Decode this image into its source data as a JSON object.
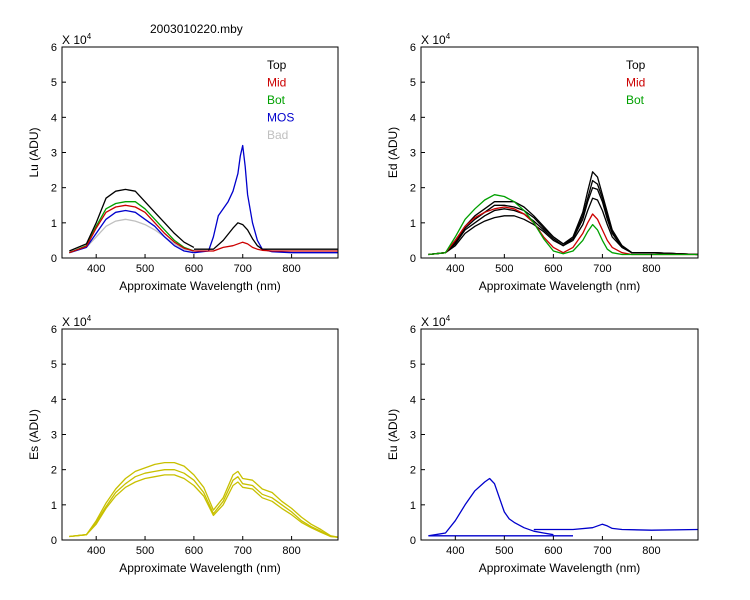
{
  "figure_title": "2003010220.mby",
  "chart_data": [
    {
      "id": "lu",
      "type": "line",
      "ylabel": "Lu (ADU)",
      "xlabel": "Approximate Wavelength (nm)",
      "exponent_label": "X 10",
      "exponent_power": "4",
      "xlim": [
        330,
        895
      ],
      "ylim": [
        0,
        6
      ],
      "xticks": [
        400,
        500,
        600,
        700,
        800
      ],
      "yticks": [
        0,
        1,
        2,
        3,
        4,
        5,
        6
      ],
      "legend": [
        {
          "label": "Top",
          "color": "#000000"
        },
        {
          "label": "Mid",
          "color": "#cc0000"
        },
        {
          "label": "Bot",
          "color": "#00a000"
        },
        {
          "label": "MOS",
          "color": "#0000cc"
        },
        {
          "label": "Bad",
          "color": "#c0c0c0"
        }
      ],
      "series": [
        {
          "name": "Bad",
          "color": "#c0c0c0",
          "x": [
            345,
            380,
            400,
            420,
            440,
            460,
            480,
            500,
            520,
            540,
            560,
            580,
            600
          ],
          "y": [
            0.15,
            0.3,
            0.6,
            0.9,
            1.05,
            1.1,
            1.05,
            0.95,
            0.8,
            0.6,
            0.4,
            0.25,
            0.2
          ]
        },
        {
          "name": "MOS",
          "color": "#0000cc",
          "x": [
            345,
            380,
            400,
            420,
            440,
            460,
            480,
            500,
            520,
            540,
            560,
            580,
            600
          ],
          "y": [
            0.15,
            0.3,
            0.7,
            1.1,
            1.3,
            1.35,
            1.3,
            1.1,
            0.9,
            0.6,
            0.35,
            0.2,
            0.15
          ]
        },
        {
          "name": "Bot",
          "color": "#00a000",
          "x": [
            345,
            380,
            400,
            420,
            440,
            460,
            480,
            500,
            520,
            540,
            560,
            580,
            600
          ],
          "y": [
            0.15,
            0.35,
            0.9,
            1.4,
            1.55,
            1.6,
            1.6,
            1.4,
            1.1,
            0.8,
            0.5,
            0.3,
            0.2
          ]
        },
        {
          "name": "Mid",
          "color": "#cc0000",
          "x": [
            345,
            380,
            400,
            420,
            440,
            460,
            480,
            500,
            520,
            540,
            560,
            580,
            600
          ],
          "y": [
            0.15,
            0.33,
            0.85,
            1.3,
            1.45,
            1.5,
            1.45,
            1.3,
            1.0,
            0.7,
            0.45,
            0.28,
            0.2
          ]
        },
        {
          "name": "Top",
          "color": "#000000",
          "x": [
            345,
            380,
            400,
            420,
            440,
            460,
            480,
            500,
            520,
            540,
            560,
            580,
            600
          ],
          "y": [
            0.2,
            0.4,
            1.0,
            1.7,
            1.9,
            1.95,
            1.9,
            1.6,
            1.3,
            1.0,
            0.7,
            0.45,
            0.3
          ]
        },
        {
          "name": "MOS",
          "color": "#0000cc",
          "x": [
            600,
            630,
            640,
            650,
            660,
            670,
            680,
            690,
            695,
            700,
            705,
            710,
            720,
            730,
            740,
            760,
            800,
            895
          ],
          "y": [
            0.15,
            0.2,
            0.6,
            1.2,
            1.4,
            1.6,
            1.9,
            2.4,
            2.9,
            3.2,
            2.6,
            1.8,
            1.0,
            0.5,
            0.25,
            0.18,
            0.15,
            0.15
          ]
        },
        {
          "name": "Top",
          "color": "#000000",
          "x": [
            600,
            640,
            660,
            680,
            690,
            700,
            710,
            720,
            730,
            740,
            760,
            800,
            895
          ],
          "y": [
            0.25,
            0.25,
            0.5,
            0.85,
            1.0,
            0.95,
            0.8,
            0.55,
            0.35,
            0.25,
            0.25,
            0.25,
            0.25
          ]
        },
        {
          "name": "Mid",
          "color": "#cc0000",
          "x": [
            600,
            640,
            660,
            680,
            700,
            710,
            720,
            730,
            740,
            760,
            800,
            895
          ],
          "y": [
            0.2,
            0.2,
            0.3,
            0.35,
            0.45,
            0.4,
            0.3,
            0.25,
            0.22,
            0.2,
            0.2,
            0.2
          ]
        }
      ]
    },
    {
      "id": "ed",
      "type": "line",
      "ylabel": "Ed  (ADU)",
      "xlabel": "Approximate Wavelength (nm)",
      "exponent_label": "X 10",
      "exponent_power": "4",
      "xlim": [
        330,
        895
      ],
      "ylim": [
        0,
        6
      ],
      "xticks": [
        400,
        500,
        600,
        700,
        800
      ],
      "yticks": [
        0,
        1,
        2,
        3,
        4,
        5,
        6
      ],
      "legend": [
        {
          "label": "Top",
          "color": "#000000"
        },
        {
          "label": "Mid",
          "color": "#cc0000"
        },
        {
          "label": "Bot",
          "color": "#00a000"
        }
      ],
      "series": [
        {
          "name": "Top",
          "color": "#000000",
          "x": [
            345,
            380,
            400,
            420,
            440,
            460,
            480,
            500,
            520,
            540,
            560,
            580,
            600,
            620,
            640,
            660,
            670,
            680,
            690,
            700,
            710,
            720,
            740,
            760,
            800,
            895
          ],
          "y": [
            0.1,
            0.15,
            0.5,
            0.9,
            1.2,
            1.4,
            1.6,
            1.6,
            1.6,
            1.45,
            1.2,
            0.9,
            0.6,
            0.4,
            0.6,
            1.3,
            1.9,
            2.45,
            2.3,
            1.8,
            1.3,
            0.8,
            0.35,
            0.15,
            0.15,
            0.1
          ]
        },
        {
          "name": "Top",
          "color": "#000000",
          "x": [
            345,
            380,
            400,
            420,
            440,
            460,
            480,
            500,
            520,
            540,
            560,
            580,
            600,
            620,
            640,
            660,
            670,
            680,
            690,
            700,
            710,
            720,
            740,
            760,
            800,
            895
          ],
          "y": [
            0.1,
            0.15,
            0.4,
            0.8,
            1.0,
            1.2,
            1.35,
            1.4,
            1.35,
            1.25,
            1.05,
            0.8,
            0.55,
            0.35,
            0.55,
            1.1,
            1.6,
            2.0,
            1.95,
            1.6,
            1.1,
            0.7,
            0.3,
            0.15,
            0.15,
            0.1
          ]
        },
        {
          "name": "Top",
          "color": "#000000",
          "x": [
            345,
            380,
            400,
            420,
            440,
            460,
            480,
            500,
            520,
            540,
            560,
            580,
            600,
            620,
            640,
            660,
            670,
            680,
            690,
            700,
            710,
            720,
            740,
            760,
            800,
            895
          ],
          "y": [
            0.1,
            0.15,
            0.35,
            0.7,
            0.9,
            1.05,
            1.15,
            1.2,
            1.2,
            1.1,
            0.95,
            0.75,
            0.5,
            0.35,
            0.5,
            0.95,
            1.35,
            1.7,
            1.65,
            1.35,
            0.95,
            0.6,
            0.3,
            0.15,
            0.15,
            0.1
          ]
        },
        {
          "name": "Top",
          "color": "#000000",
          "x": [
            345,
            380,
            400,
            420,
            440,
            460,
            480,
            500,
            520,
            540,
            560,
            580,
            600,
            620,
            640,
            660,
            670,
            680,
            690,
            700,
            710,
            720,
            740,
            760,
            800,
            895
          ],
          "y": [
            0.1,
            0.15,
            0.45,
            0.85,
            1.1,
            1.3,
            1.5,
            1.5,
            1.45,
            1.35,
            1.15,
            0.85,
            0.6,
            0.4,
            0.55,
            1.2,
            1.7,
            2.2,
            2.1,
            1.7,
            1.2,
            0.75,
            0.35,
            0.15,
            0.15,
            0.1
          ]
        },
        {
          "name": "Mid",
          "color": "#cc0000",
          "x": [
            345,
            380,
            400,
            420,
            440,
            460,
            480,
            500,
            520,
            540,
            560,
            580,
            600,
            620,
            640,
            660,
            670,
            680,
            690,
            700,
            710,
            720,
            740,
            760,
            800,
            895
          ],
          "y": [
            0.1,
            0.15,
            0.5,
            0.9,
            1.15,
            1.3,
            1.4,
            1.45,
            1.4,
            1.25,
            1.0,
            0.6,
            0.3,
            0.15,
            0.3,
            0.7,
            1.0,
            1.25,
            1.1,
            0.8,
            0.5,
            0.3,
            0.15,
            0.1,
            0.1,
            0.1
          ]
        },
        {
          "name": "Bot",
          "color": "#00a000",
          "x": [
            345,
            380,
            400,
            420,
            440,
            460,
            480,
            500,
            520,
            540,
            560,
            580,
            600,
            620,
            640,
            660,
            670,
            680,
            690,
            700,
            710,
            720,
            740,
            760,
            800,
            895
          ],
          "y": [
            0.1,
            0.15,
            0.6,
            1.1,
            1.4,
            1.65,
            1.8,
            1.75,
            1.6,
            1.35,
            1.0,
            0.55,
            0.2,
            0.12,
            0.2,
            0.5,
            0.75,
            0.95,
            0.8,
            0.5,
            0.25,
            0.15,
            0.1,
            0.1,
            0.1,
            0.1
          ]
        }
      ]
    },
    {
      "id": "es",
      "type": "line",
      "ylabel": "Es  (ADU)",
      "xlabel": "Approximate Wavelength (nm)",
      "exponent_label": "X 10",
      "exponent_power": "4",
      "xlim": [
        330,
        895
      ],
      "ylim": [
        0,
        6
      ],
      "xticks": [
        400,
        500,
        600,
        700,
        800
      ],
      "yticks": [
        0,
        1,
        2,
        3,
        4,
        5,
        6
      ],
      "legend": [],
      "series": [
        {
          "name": "Es",
          "color": "#c8c000",
          "x": [
            345,
            380,
            400,
            420,
            440,
            460,
            480,
            500,
            520,
            540,
            560,
            580,
            600,
            620,
            640,
            660,
            680,
            690,
            700,
            720,
            740,
            760,
            780,
            800,
            820,
            840,
            860,
            880,
            895
          ],
          "y": [
            0.1,
            0.15,
            0.55,
            1.05,
            1.45,
            1.75,
            1.95,
            2.05,
            2.15,
            2.2,
            2.2,
            2.1,
            1.85,
            1.5,
            0.85,
            1.2,
            1.85,
            1.95,
            1.75,
            1.7,
            1.45,
            1.35,
            1.1,
            0.9,
            0.65,
            0.45,
            0.3,
            0.12,
            0.08
          ]
        },
        {
          "name": "Es",
          "color": "#c8c000",
          "x": [
            345,
            380,
            400,
            420,
            440,
            460,
            480,
            500,
            520,
            540,
            560,
            580,
            600,
            620,
            640,
            660,
            680,
            690,
            700,
            720,
            740,
            760,
            780,
            800,
            820,
            840,
            860,
            880,
            895
          ],
          "y": [
            0.1,
            0.15,
            0.5,
            0.95,
            1.35,
            1.6,
            1.8,
            1.9,
            1.95,
            2.0,
            2.0,
            1.9,
            1.7,
            1.35,
            0.75,
            1.1,
            1.7,
            1.8,
            1.6,
            1.55,
            1.3,
            1.2,
            1.0,
            0.8,
            0.55,
            0.38,
            0.25,
            0.1,
            0.08
          ]
        },
        {
          "name": "Es",
          "color": "#c8c000",
          "x": [
            345,
            380,
            400,
            420,
            440,
            460,
            480,
            500,
            520,
            540,
            560,
            580,
            600,
            620,
            640,
            660,
            680,
            690,
            700,
            720,
            740,
            760,
            780,
            800,
            820,
            840,
            860,
            880,
            895
          ],
          "y": [
            0.1,
            0.15,
            0.45,
            0.9,
            1.25,
            1.5,
            1.65,
            1.75,
            1.8,
            1.85,
            1.85,
            1.75,
            1.55,
            1.25,
            0.7,
            1.0,
            1.55,
            1.65,
            1.5,
            1.45,
            1.2,
            1.1,
            0.9,
            0.72,
            0.5,
            0.35,
            0.22,
            0.1,
            0.08
          ]
        }
      ]
    },
    {
      "id": "eu",
      "type": "line",
      "ylabel": "Eu  (ADU)",
      "xlabel": "Approximate Wavelength (nm)",
      "exponent_label": "X 10",
      "exponent_power": "4",
      "xlim": [
        330,
        895
      ],
      "ylim": [
        0,
        6
      ],
      "xticks": [
        400,
        500,
        600,
        700,
        800
      ],
      "yticks": [
        0,
        1,
        2,
        3,
        4,
        5,
        6
      ],
      "legend": [],
      "series": [
        {
          "name": "Eu",
          "color": "#0000cc",
          "x": [
            345,
            380,
            400,
            420,
            440,
            460,
            470,
            480,
            490,
            500,
            510,
            520,
            540,
            560,
            580,
            600
          ],
          "y": [
            0.12,
            0.2,
            0.55,
            1.0,
            1.4,
            1.65,
            1.75,
            1.6,
            1.2,
            0.8,
            0.6,
            0.5,
            0.35,
            0.25,
            0.2,
            0.15
          ]
        },
        {
          "name": "Eu",
          "color": "#0000cc",
          "x": [
            345,
            640
          ],
          "y": [
            0.12,
            0.12
          ]
        },
        {
          "name": "Eu",
          "color": "#0000cc",
          "x": [
            560,
            600,
            640,
            680,
            700,
            710,
            720,
            740,
            800,
            895
          ],
          "y": [
            0.3,
            0.3,
            0.3,
            0.35,
            0.45,
            0.4,
            0.33,
            0.3,
            0.28,
            0.3
          ]
        }
      ]
    }
  ]
}
